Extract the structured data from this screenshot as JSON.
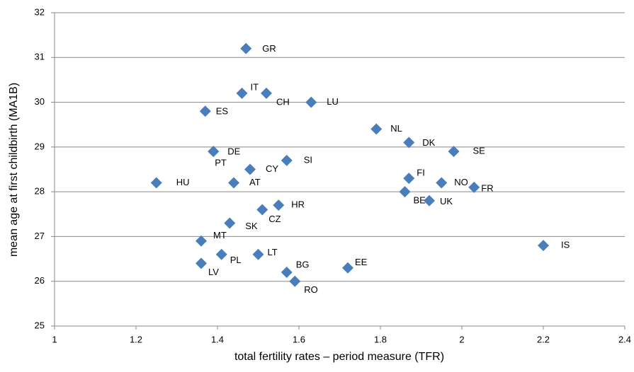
{
  "chart_data": {
    "type": "scatter",
    "x_label": "total fertility rates – period measure (TFR)",
    "y_label": "mean age at first childbirth (MA1B)",
    "color": "#4a7ebb",
    "grid": true,
    "xlim": [
      1,
      2.4
    ],
    "xticks": [
      1,
      1.2,
      1.4,
      1.6,
      1.8,
      2,
      2.2,
      2.4
    ],
    "ylim": [
      25,
      32
    ],
    "yticks": [
      25,
      26,
      27,
      28,
      29,
      30,
      31,
      32
    ],
    "labels": [
      "GR",
      "IT",
      "CH",
      "LU",
      "ES",
      "NL",
      "DK",
      "SE",
      "DE",
      "PT",
      "SI",
      "CY",
      "FI",
      "HU",
      "AT",
      "NO",
      "FR",
      "BE",
      "UK",
      "HR",
      "CZ",
      "SK",
      "MT",
      "IS",
      "PL",
      "LT",
      "LV",
      "EE",
      "BG",
      "RO"
    ],
    "x": [
      1.47,
      1.46,
      1.52,
      1.63,
      1.37,
      1.79,
      1.87,
      1.98,
      1.39,
      1.39,
      1.57,
      1.48,
      1.87,
      1.25,
      1.44,
      1.95,
      2.03,
      1.86,
      1.92,
      1.55,
      1.51,
      1.43,
      1.36,
      2.2,
      1.41,
      1.5,
      1.36,
      1.72,
      1.57,
      1.59
    ],
    "y": [
      31.2,
      30.2,
      30.2,
      30.0,
      29.8,
      29.4,
      29.1,
      28.9,
      28.9,
      28.9,
      28.7,
      28.5,
      28.3,
      28.2,
      28.2,
      28.2,
      28.1,
      28.0,
      27.8,
      27.7,
      27.6,
      27.3,
      26.9,
      26.8,
      26.6,
      26.6,
      26.4,
      26.3,
      26.2,
      26.0
    ]
  }
}
